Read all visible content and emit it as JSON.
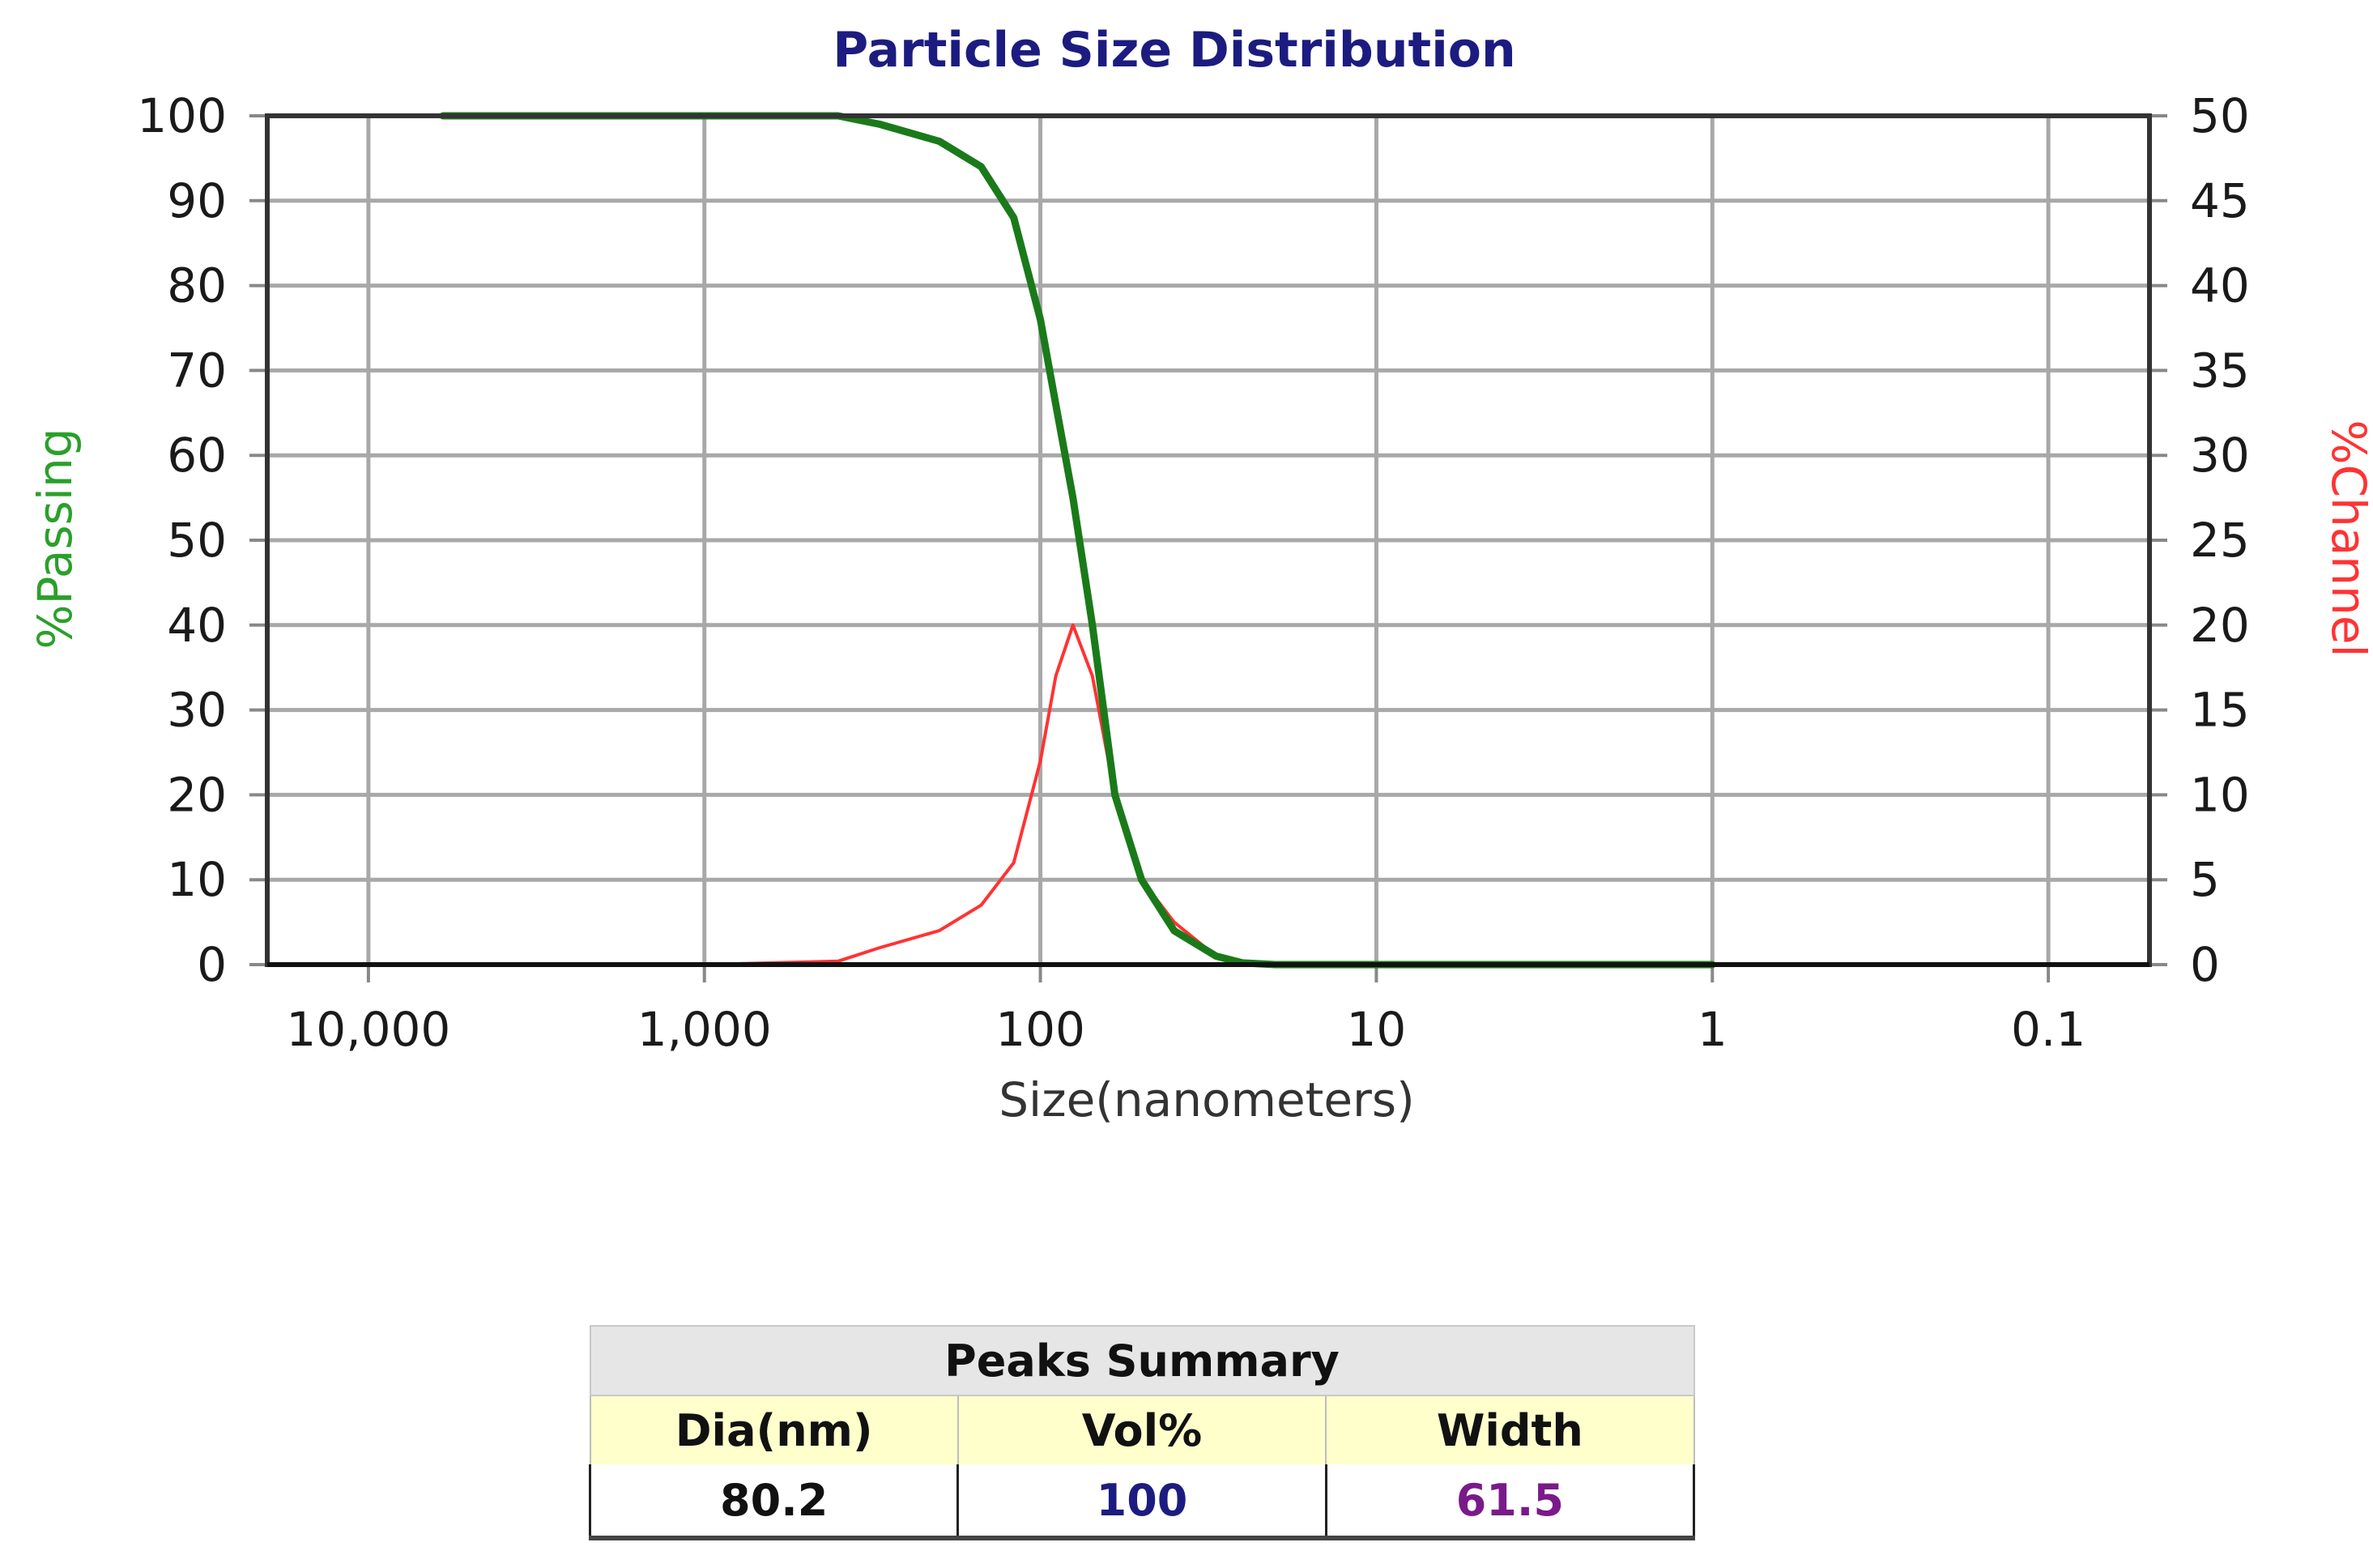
{
  "chart_data": {
    "type": "line",
    "title": "Particle Size Distribution",
    "xlabel": "Size(nanometers)",
    "x_scale": "log",
    "x_reversed": true,
    "xlim": [
      20000,
      0.05
    ],
    "x_ticks": [
      10000,
      1000,
      100,
      10,
      1,
      0.1
    ],
    "x_tick_labels": [
      "10,000",
      "1,000",
      "100",
      "10",
      "1",
      "0.1"
    ],
    "y_left": {
      "label": "%Passing",
      "ylim": [
        0,
        100
      ],
      "ticks": [
        "0",
        "10",
        "20",
        "30",
        "40",
        "50",
        "60",
        "70",
        "80",
        "90",
        "100"
      ]
    },
    "y_right": {
      "label": "%Channel",
      "ylim": [
        0,
        50
      ],
      "ticks": [
        "0",
        "5",
        "10",
        "15",
        "20",
        "25",
        "30",
        "35",
        "40",
        "45",
        "50"
      ]
    },
    "grid": true,
    "series": [
      {
        "name": "%Passing",
        "axis": "left",
        "color": "#1a7a1a",
        "x": [
          6000,
          1000,
          400,
          300,
          200,
          150,
          120,
          100,
          90,
          80,
          70,
          60,
          50,
          40,
          30,
          25,
          20,
          10,
          1
        ],
        "y": [
          100,
          100,
          100,
          99,
          97,
          94,
          88,
          76,
          66,
          55,
          40,
          20,
          10,
          4,
          1,
          0.2,
          0,
          0,
          0
        ]
      },
      {
        "name": "%Channel",
        "axis": "right",
        "color": "#ff3333",
        "x": [
          5000,
          1000,
          400,
          300,
          200,
          150,
          120,
          100,
          90,
          80,
          70,
          60,
          50,
          40,
          30,
          25,
          20,
          10,
          1
        ],
        "y": [
          0,
          0,
          0.2,
          1,
          2,
          3.5,
          6,
          12,
          17,
          20,
          17,
          10,
          5,
          2.5,
          0.5,
          0.1,
          0,
          0,
          0
        ]
      }
    ]
  },
  "peaks_summary": {
    "title": "Peaks Summary",
    "columns": [
      "Dia(nm)",
      "Vol%",
      "Width"
    ],
    "values": [
      "80.2",
      "100",
      "61.5"
    ]
  }
}
